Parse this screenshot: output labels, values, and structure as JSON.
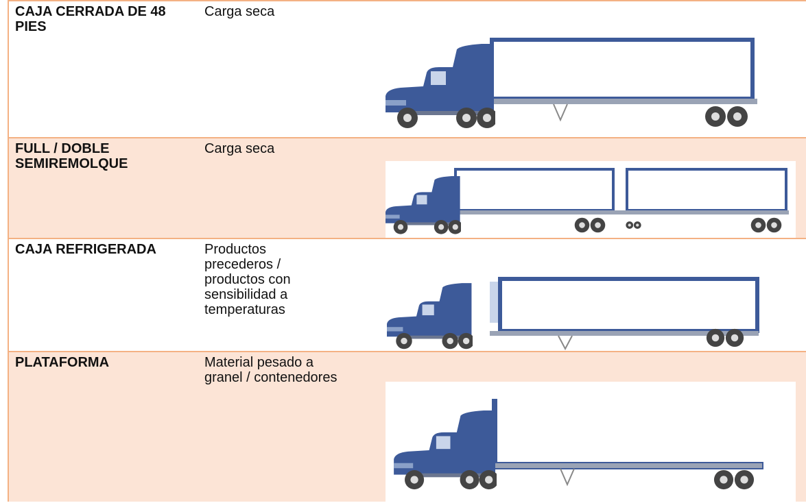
{
  "rows": [
    {
      "type": "CAJA CERRADA DE 48 PIES",
      "use": "Carga seca"
    },
    {
      "type": "FULL / DOBLE SEMIREMOLQUE",
      "use": "Carga seca"
    },
    {
      "type": "CAJA REFRIGERADA",
      "use": "Productos precederos / productos con sensibilidad a temperaturas"
    },
    {
      "type": "PLATAFORMA",
      "use": "Material pesado a granel / contenedores"
    }
  ]
}
